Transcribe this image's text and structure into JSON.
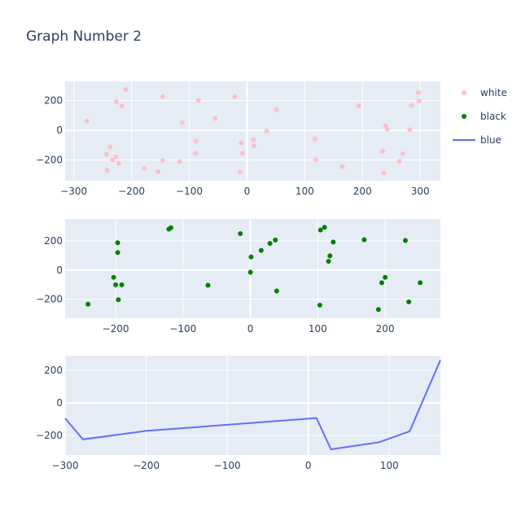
{
  "chart_data": {
    "title": "Graph Number 2",
    "legend": {
      "placement": "top-right"
    },
    "colors": {
      "plot_bg": "#e5ecf6",
      "grid": "#ffffff",
      "text": "#2a3f5f",
      "white": "#ffc0cb",
      "black": "#008000",
      "blue": "#636efa"
    },
    "subplots": [
      {
        "type": "scatter",
        "series_name": "white",
        "color": "#ffc0cb",
        "xlim": [
          -315,
          335
        ],
        "ylim": [
          -340,
          330
        ],
        "xticks": [
          -300,
          -200,
          -100,
          0,
          100,
          200,
          300
        ],
        "yticks": [
          -200,
          0,
          200
        ],
        "x": [
          -277,
          -226,
          -217,
          -210,
          -146,
          -84,
          -55,
          -21,
          -112,
          -237,
          -227,
          -222,
          -243,
          -242,
          -233,
          -88,
          -89,
          -117,
          -146,
          -178,
          -154,
          -10,
          -8,
          -12,
          11,
          12,
          34,
          51,
          118,
          119,
          165,
          194,
          235,
          237,
          240,
          243,
          264,
          270,
          282,
          285,
          297,
          298
        ],
        "y": [
          63,
          193,
          163,
          275,
          228,
          200,
          80,
          228,
          51,
          -112,
          -180,
          -222,
          -163,
          -270,
          -200,
          -72,
          -155,
          -213,
          -203,
          -257,
          -278,
          -85,
          -155,
          -283,
          -65,
          -103,
          -5,
          140,
          -58,
          -199,
          -245,
          165,
          -143,
          -288,
          33,
          8,
          -210,
          -158,
          4,
          167,
          253,
          198
        ]
      },
      {
        "type": "scatter",
        "series_name": "black",
        "color": "#008000",
        "xlim": [
          -275,
          282
        ],
        "ylim": [
          -330,
          350
        ],
        "xticks": [
          -200,
          -100,
          0,
          100,
          200
        ],
        "yticks": [
          -200,
          0,
          200
        ],
        "x": [
          -241,
          -203,
          -200,
          -197,
          -197,
          -196,
          -191,
          -121,
          -118,
          -63,
          -15,
          0,
          1,
          16,
          29,
          37,
          39,
          103,
          104,
          110,
          116,
          118,
          123,
          169,
          190,
          195,
          200,
          230,
          235,
          252
        ],
        "y": [
          -234,
          -50,
          -101,
          120,
          187,
          -203,
          -101,
          280,
          290,
          -104,
          250,
          -15,
          90,
          135,
          183,
          206,
          -143,
          -240,
          274,
          293,
          60,
          98,
          192,
          208,
          -270,
          -87,
          -50,
          202,
          -218,
          -87
        ]
      },
      {
        "type": "line",
        "series_name": "blue",
        "color": "#636efa",
        "xlim": [
          -300,
          163
        ],
        "ylim": [
          -320,
          290
        ],
        "xticks": [
          -300,
          -200,
          -100,
          0,
          100
        ],
        "yticks": [
          -200,
          0,
          200
        ],
        "x": [
          -300,
          -278,
          -200,
          10,
          28,
          87,
          125,
          163
        ],
        "y": [
          -95,
          -224,
          -172,
          -93,
          -285,
          -242,
          -175,
          263
        ]
      }
    ]
  }
}
